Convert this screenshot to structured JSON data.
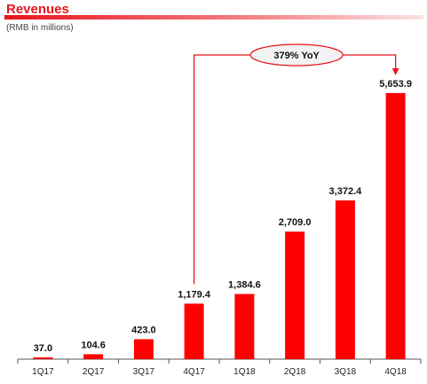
{
  "header": {
    "title": "Revenues",
    "subtitle": "(RMB in millions)"
  },
  "callout": {
    "label": "379% YoY",
    "from_category": "4Q17",
    "to_category": "4Q18"
  },
  "colors": {
    "bar": "#ff0000",
    "accent": "#e8141c",
    "axis": "#555555"
  },
  "chart_data": {
    "type": "bar",
    "title": "Revenues",
    "subtitle": "(RMB in millions)",
    "xlabel": "",
    "ylabel": "",
    "categories": [
      "1Q17",
      "2Q17",
      "3Q17",
      "4Q17",
      "1Q18",
      "2Q18",
      "3Q18",
      "4Q18"
    ],
    "values": [
      37.0,
      104.6,
      423.0,
      1179.4,
      1384.6,
      2709.0,
      3372.4,
      5653.9
    ],
    "value_labels": [
      "37.0",
      "104.6",
      "423.0",
      "1,179.4",
      "1,384.6",
      "2,709.0",
      "3,372.4",
      "5,653.9"
    ],
    "ylim": [
      0,
      6500
    ],
    "grid": false,
    "legend": "none"
  }
}
